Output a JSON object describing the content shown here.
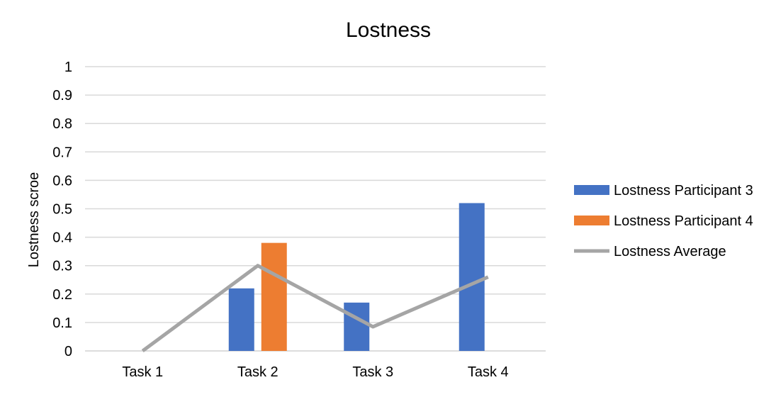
{
  "chart_data": {
    "type": "bar",
    "title": "Lostness",
    "xlabel": "",
    "ylabel": "Lostness scroe",
    "ylim": [
      0,
      1
    ],
    "yticks": [
      "0",
      "0.1",
      "0.2",
      "0.3",
      "0.4",
      "0.5",
      "0.6",
      "0.7",
      "0.8",
      "0.9",
      "1"
    ],
    "categories": [
      "Task 1",
      "Task 2",
      "Task 3",
      "Task 4"
    ],
    "grid": true,
    "legend_position": "right",
    "series": [
      {
        "name": "Lostness Participant 3",
        "type": "bar",
        "color": "#4472C4",
        "values": [
          0,
          0.22,
          0.17,
          0.52
        ]
      },
      {
        "name": "Lostness Participant 4",
        "type": "bar",
        "color": "#ED7D31",
        "values": [
          0,
          0.38,
          0,
          0
        ]
      },
      {
        "name": "Lostness Average",
        "type": "line",
        "color": "#A5A5A5",
        "values": [
          0,
          0.3,
          0.085,
          0.26
        ]
      }
    ]
  }
}
